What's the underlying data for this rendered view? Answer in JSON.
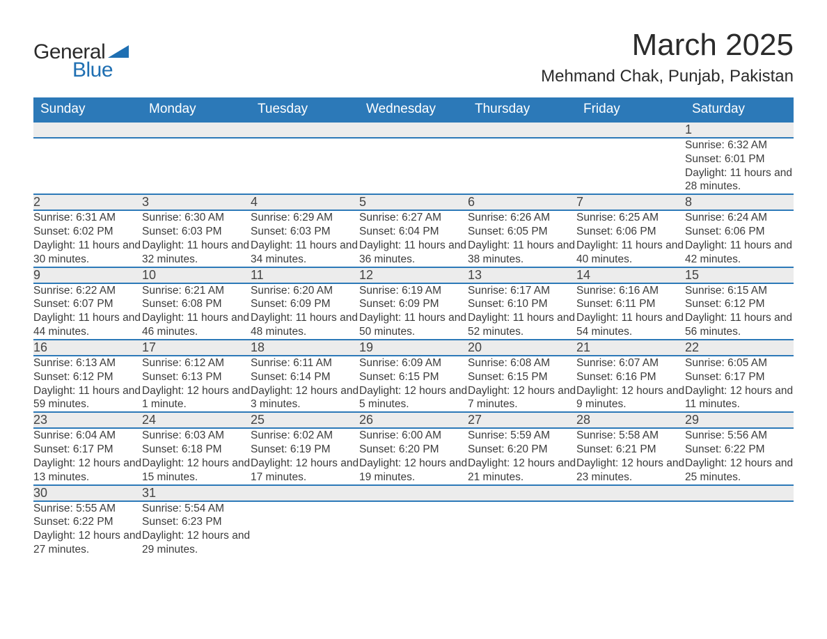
{
  "brand": {
    "word1": "General",
    "word2": "Blue",
    "triangle_color": "#1f6fb2"
  },
  "title": {
    "month": "March 2025",
    "location": "Mehmand Chak, Punjab, Pakistan"
  },
  "colors": {
    "header_bg": "#2c79b8",
    "header_text": "#ffffff",
    "row_divider": "#2c79b8",
    "daynum_bg": "#ececec",
    "body_text": "#3b3b3b"
  },
  "fonts": {
    "title_size_pt": 33,
    "subtitle_size_pt": 18,
    "header_size_pt": 14,
    "body_size_pt": 12
  },
  "type": "table",
  "columns": [
    "Sunday",
    "Monday",
    "Tuesday",
    "Wednesday",
    "Thursday",
    "Friday",
    "Saturday"
  ],
  "weeks": [
    [
      null,
      null,
      null,
      null,
      null,
      null,
      {
        "n": "1",
        "sr": "6:32 AM",
        "ss": "6:01 PM",
        "dl": "11 hours and 28 minutes."
      }
    ],
    [
      {
        "n": "2",
        "sr": "6:31 AM",
        "ss": "6:02 PM",
        "dl": "11 hours and 30 minutes."
      },
      {
        "n": "3",
        "sr": "6:30 AM",
        "ss": "6:03 PM",
        "dl": "11 hours and 32 minutes."
      },
      {
        "n": "4",
        "sr": "6:29 AM",
        "ss": "6:03 PM",
        "dl": "11 hours and 34 minutes."
      },
      {
        "n": "5",
        "sr": "6:27 AM",
        "ss": "6:04 PM",
        "dl": "11 hours and 36 minutes."
      },
      {
        "n": "6",
        "sr": "6:26 AM",
        "ss": "6:05 PM",
        "dl": "11 hours and 38 minutes."
      },
      {
        "n": "7",
        "sr": "6:25 AM",
        "ss": "6:06 PM",
        "dl": "11 hours and 40 minutes."
      },
      {
        "n": "8",
        "sr": "6:24 AM",
        "ss": "6:06 PM",
        "dl": "11 hours and 42 minutes."
      }
    ],
    [
      {
        "n": "9",
        "sr": "6:22 AM",
        "ss": "6:07 PM",
        "dl": "11 hours and 44 minutes."
      },
      {
        "n": "10",
        "sr": "6:21 AM",
        "ss": "6:08 PM",
        "dl": "11 hours and 46 minutes."
      },
      {
        "n": "11",
        "sr": "6:20 AM",
        "ss": "6:09 PM",
        "dl": "11 hours and 48 minutes."
      },
      {
        "n": "12",
        "sr": "6:19 AM",
        "ss": "6:09 PM",
        "dl": "11 hours and 50 minutes."
      },
      {
        "n": "13",
        "sr": "6:17 AM",
        "ss": "6:10 PM",
        "dl": "11 hours and 52 minutes."
      },
      {
        "n": "14",
        "sr": "6:16 AM",
        "ss": "6:11 PM",
        "dl": "11 hours and 54 minutes."
      },
      {
        "n": "15",
        "sr": "6:15 AM",
        "ss": "6:12 PM",
        "dl": "11 hours and 56 minutes."
      }
    ],
    [
      {
        "n": "16",
        "sr": "6:13 AM",
        "ss": "6:12 PM",
        "dl": "11 hours and 59 minutes."
      },
      {
        "n": "17",
        "sr": "6:12 AM",
        "ss": "6:13 PM",
        "dl": "12 hours and 1 minute."
      },
      {
        "n": "18",
        "sr": "6:11 AM",
        "ss": "6:14 PM",
        "dl": "12 hours and 3 minutes."
      },
      {
        "n": "19",
        "sr": "6:09 AM",
        "ss": "6:15 PM",
        "dl": "12 hours and 5 minutes."
      },
      {
        "n": "20",
        "sr": "6:08 AM",
        "ss": "6:15 PM",
        "dl": "12 hours and 7 minutes."
      },
      {
        "n": "21",
        "sr": "6:07 AM",
        "ss": "6:16 PM",
        "dl": "12 hours and 9 minutes."
      },
      {
        "n": "22",
        "sr": "6:05 AM",
        "ss": "6:17 PM",
        "dl": "12 hours and 11 minutes."
      }
    ],
    [
      {
        "n": "23",
        "sr": "6:04 AM",
        "ss": "6:17 PM",
        "dl": "12 hours and 13 minutes."
      },
      {
        "n": "24",
        "sr": "6:03 AM",
        "ss": "6:18 PM",
        "dl": "12 hours and 15 minutes."
      },
      {
        "n": "25",
        "sr": "6:02 AM",
        "ss": "6:19 PM",
        "dl": "12 hours and 17 minutes."
      },
      {
        "n": "26",
        "sr": "6:00 AM",
        "ss": "6:20 PM",
        "dl": "12 hours and 19 minutes."
      },
      {
        "n": "27",
        "sr": "5:59 AM",
        "ss": "6:20 PM",
        "dl": "12 hours and 21 minutes."
      },
      {
        "n": "28",
        "sr": "5:58 AM",
        "ss": "6:21 PM",
        "dl": "12 hours and 23 minutes."
      },
      {
        "n": "29",
        "sr": "5:56 AM",
        "ss": "6:22 PM",
        "dl": "12 hours and 25 minutes."
      }
    ],
    [
      {
        "n": "30",
        "sr": "5:55 AM",
        "ss": "6:22 PM",
        "dl": "12 hours and 27 minutes."
      },
      {
        "n": "31",
        "sr": "5:54 AM",
        "ss": "6:23 PM",
        "dl": "12 hours and 29 minutes."
      },
      null,
      null,
      null,
      null,
      null
    ]
  ],
  "labels": {
    "sunrise": "Sunrise: ",
    "sunset": "Sunset: ",
    "daylight": "Daylight: "
  }
}
